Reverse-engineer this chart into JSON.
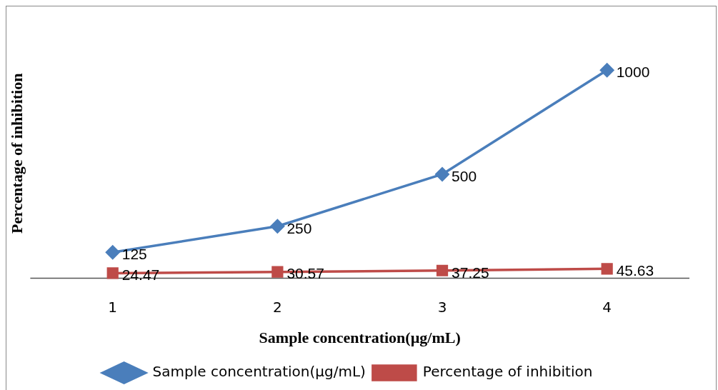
{
  "chart_data": {
    "type": "line",
    "xlabel": "Sample concentration(µg/mL)",
    "ylabel": "Percentage of inhibition",
    "categories": [
      "1",
      "2",
      "3",
      "4"
    ],
    "series": [
      {
        "name": "Sample concentration(µg/mL)",
        "color": "#4a7ebb",
        "marker": "diamond",
        "values": [
          125,
          250,
          500,
          1000
        ]
      },
      {
        "name": "Percentage of inhibition",
        "color": "#be4b48",
        "marker": "square",
        "values": [
          24.47,
          30.57,
          37.25,
          45.63
        ]
      }
    ],
    "data_labels": true,
    "legend": "bottom",
    "grid": false,
    "tick_labels": "x"
  }
}
